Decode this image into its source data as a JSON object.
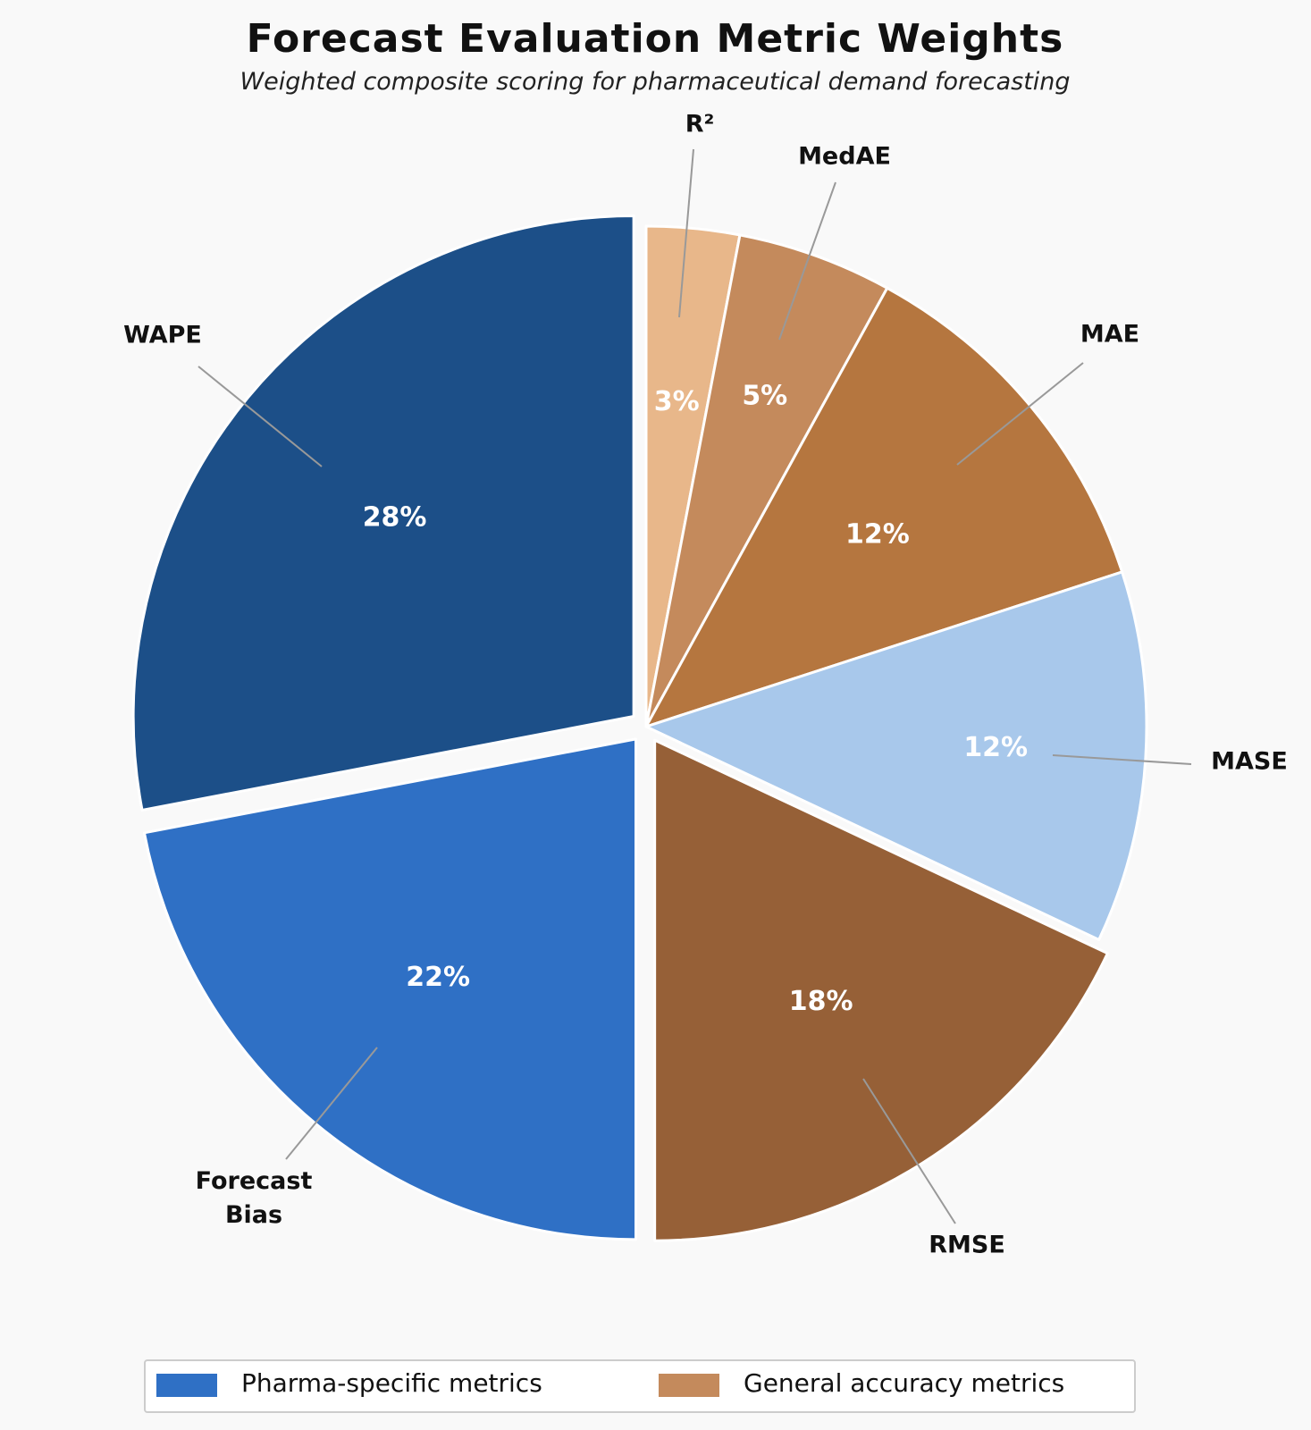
{
  "chart_data": {
    "type": "pie",
    "title": "Forecast Evaluation Metric Weights",
    "subtitle": "Weighted composite scoring for pharmaceutical demand forecasting",
    "slices": [
      {
        "label": "R²",
        "value": 3,
        "pct_label": "3%",
        "color": "#e8b78a",
        "group": "General accuracy metrics"
      },
      {
        "label": "MedAE",
        "value": 5,
        "pct_label": "5%",
        "color": "#c48a5c",
        "group": "General accuracy metrics"
      },
      {
        "label": "MAE",
        "value": 12,
        "pct_label": "12%",
        "color": "#b5763f",
        "group": "General accuracy metrics"
      },
      {
        "label": "MASE",
        "value": 12,
        "pct_label": "12%",
        "color": "#a8c8eb",
        "group": "Pharma-specific metrics"
      },
      {
        "label": "RMSE",
        "value": 18,
        "pct_label": "18%",
        "color": "#966037",
        "group": "General accuracy metrics"
      },
      {
        "label": "Forecast Bias",
        "value": 22,
        "pct_label": "22%",
        "color": "#2f70c5",
        "group": "Pharma-specific metrics"
      },
      {
        "label": "WAPE",
        "value": 28,
        "pct_label": "28%",
        "color": "#1c4f88",
        "group": "Pharma-specific metrics"
      }
    ],
    "legend": {
      "placement": "bottom-center",
      "entries": [
        {
          "label": "Pharma-specific metrics",
          "color": "#2f70c5"
        },
        {
          "label": "General accuracy metrics",
          "color": "#c48a5c"
        }
      ]
    }
  }
}
